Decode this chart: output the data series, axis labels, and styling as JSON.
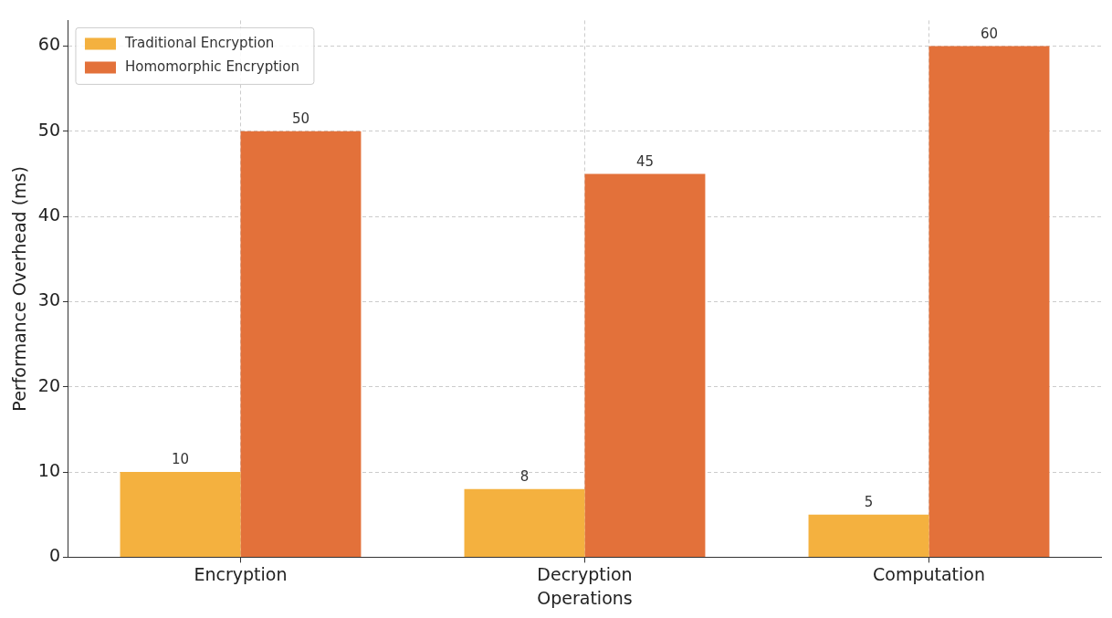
{
  "chart_data": {
    "type": "bar",
    "xlabel": "Operations",
    "ylabel": "Performance Overhead (ms)",
    "categories": [
      "Encryption",
      "Decryption",
      "Computation"
    ],
    "series": [
      {
        "name": "Traditional Encryption",
        "color": "#f4b13f",
        "values": [
          10,
          8,
          5
        ]
      },
      {
        "name": "Homomorphic Encryption",
        "color": "#e3713a",
        "values": [
          50,
          45,
          60
        ]
      }
    ],
    "ylim": [
      0,
      63
    ],
    "yticks": [
      0,
      10,
      20,
      30,
      40,
      50,
      60
    ],
    "grid": true,
    "legend": "top left",
    "data_labels": true
  }
}
